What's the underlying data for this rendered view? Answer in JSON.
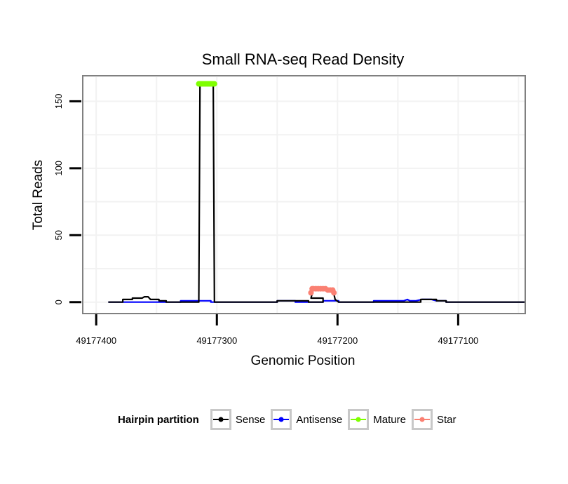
{
  "chart_data": {
    "type": "line",
    "title": "Small RNA-seq Read Density",
    "xlabel": "Genomic Position",
    "ylabel": "Total Reads",
    "x_reversed": true,
    "xlim": [
      49177410,
      49177045
    ],
    "ylim": [
      -8,
      168
    ],
    "x_ticks": [
      49177400,
      49177300,
      49177200,
      49177100
    ],
    "x_tick_labels": [
      "49177400",
      "49177300",
      "49177200",
      "49177100"
    ],
    "y_ticks": [
      0,
      50,
      100,
      150
    ],
    "y_tick_labels": [
      "0",
      "50",
      "100",
      "150"
    ],
    "grid": true,
    "legend": {
      "title": "Hairpin partition",
      "position": "bottom",
      "entries": [
        {
          "name": "Sense",
          "color": "#000000"
        },
        {
          "name": "Antisense",
          "color": "#0000ff"
        },
        {
          "name": "Mature",
          "color": "#7fff00"
        },
        {
          "name": "Star",
          "color": "#fa8072"
        }
      ]
    },
    "series": [
      {
        "name": "Sense",
        "color": "#000000",
        "points": [
          [
            49177390,
            0
          ],
          [
            49177378,
            0
          ],
          [
            49177378,
            2
          ],
          [
            49177370,
            2
          ],
          [
            49177370,
            3
          ],
          [
            49177362,
            3
          ],
          [
            49177360,
            4
          ],
          [
            49177357,
            4
          ],
          [
            49177355,
            2
          ],
          [
            49177348,
            2
          ],
          [
            49177348,
            1
          ],
          [
            49177342,
            1
          ],
          [
            49177342,
            0
          ],
          [
            49177315,
            0
          ],
          [
            49177314,
            163
          ],
          [
            49177303,
            163
          ],
          [
            49177302,
            0
          ],
          [
            49177250,
            0
          ],
          [
            49177250,
            1
          ],
          [
            49177224,
            1
          ],
          [
            49177224,
            0
          ],
          [
            49177212,
            0
          ],
          [
            49177212,
            3
          ],
          [
            49177222,
            3
          ],
          [
            49177220,
            10
          ],
          [
            49177207,
            10
          ],
          [
            49177205,
            9
          ],
          [
            49177203,
            6
          ],
          [
            49177202,
            2
          ],
          [
            49177199,
            0
          ],
          [
            49177131,
            0
          ],
          [
            49177131,
            2
          ],
          [
            49177118,
            2
          ],
          [
            49177118,
            1
          ],
          [
            49177110,
            1
          ],
          [
            49177110,
            0
          ],
          [
            49177045,
            0
          ]
        ]
      },
      {
        "name": "Antisense",
        "color": "#0000ff",
        "points": [
          [
            49177390,
            0
          ],
          [
            49177330,
            0
          ],
          [
            49177330,
            1
          ],
          [
            49177305,
            1
          ],
          [
            49177305,
            0
          ],
          [
            49177250,
            0
          ],
          [
            49177250,
            1
          ],
          [
            49177235,
            1
          ],
          [
            49177235,
            0
          ],
          [
            49177212,
            0
          ],
          [
            49177212,
            1
          ],
          [
            49177199,
            1
          ],
          [
            49177199,
            0
          ],
          [
            49177170,
            0
          ],
          [
            49177170,
            1
          ],
          [
            49177145,
            1
          ],
          [
            49177142,
            2
          ],
          [
            49177140,
            1
          ],
          [
            49177135,
            1
          ],
          [
            49177130,
            2
          ],
          [
            49177122,
            2
          ],
          [
            49177118,
            1
          ],
          [
            49177110,
            1
          ],
          [
            49177110,
            0
          ],
          [
            49177045,
            0
          ]
        ]
      },
      {
        "name": "Mature",
        "color": "#7fff00",
        "points": [
          [
            49177315,
            163
          ],
          [
            49177314,
            163
          ],
          [
            49177313,
            163
          ],
          [
            49177312,
            163
          ],
          [
            49177311,
            163
          ],
          [
            49177310,
            163
          ],
          [
            49177309,
            163
          ],
          [
            49177308,
            163
          ],
          [
            49177307,
            163
          ],
          [
            49177306,
            163
          ],
          [
            49177305,
            163
          ],
          [
            49177304,
            163
          ],
          [
            49177303,
            163
          ],
          [
            49177302,
            163
          ]
        ]
      },
      {
        "name": "Star",
        "color": "#fa8072",
        "points": [
          [
            49177222,
            7
          ],
          [
            49177221,
            10
          ],
          [
            49177220,
            10
          ],
          [
            49177218,
            10
          ],
          [
            49177216,
            10
          ],
          [
            49177214,
            10
          ],
          [
            49177212,
            10
          ],
          [
            49177210,
            10
          ],
          [
            49177208,
            9
          ],
          [
            49177206,
            9
          ],
          [
            49177204,
            9
          ],
          [
            49177203,
            7
          ]
        ]
      }
    ]
  }
}
